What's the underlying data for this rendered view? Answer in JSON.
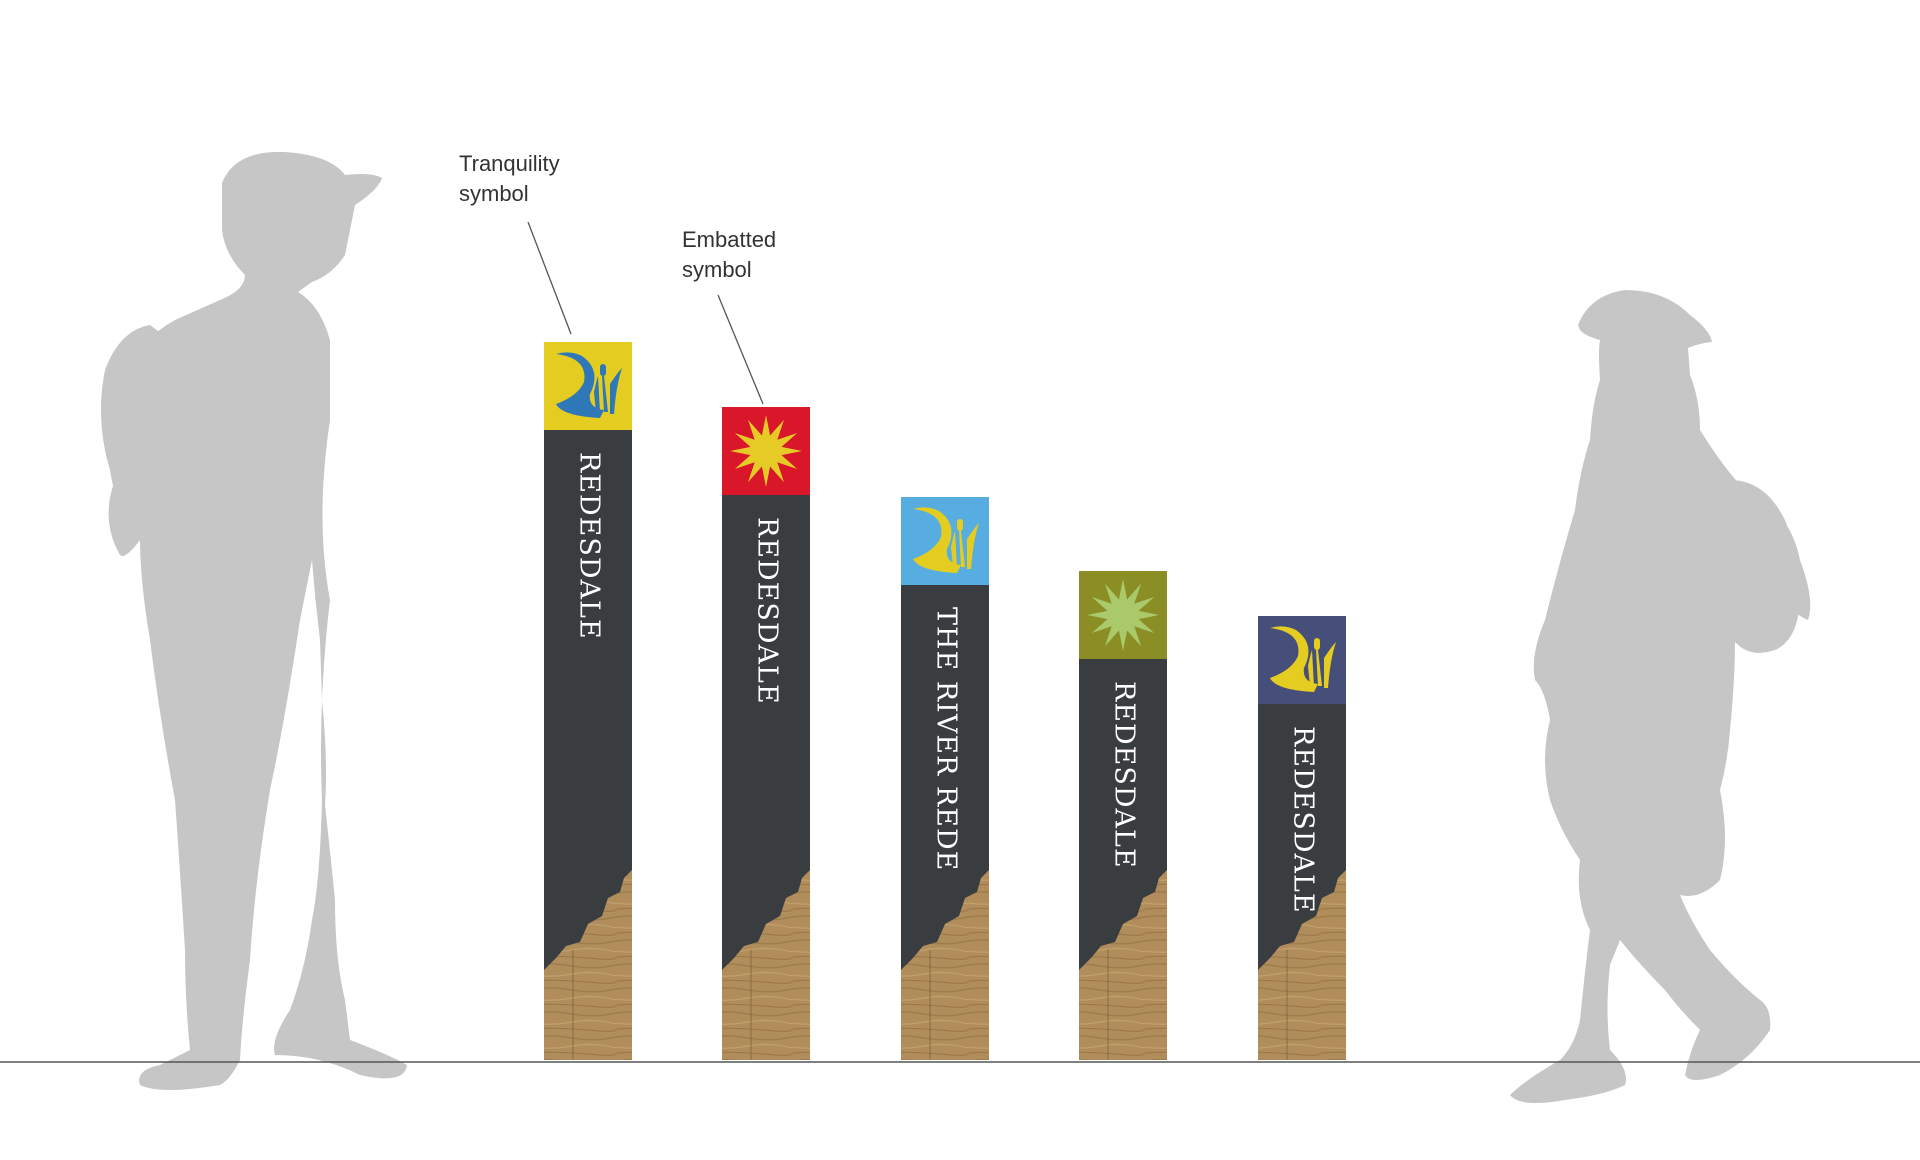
{
  "callouts": [
    {
      "line1": "Tranquility",
      "line2": "symbol"
    },
    {
      "line1": "Embatted",
      "line2": "symbol"
    }
  ],
  "posts": [
    {
      "name": "REDESDALE",
      "symbol": "tranquility-icon",
      "cap_color": "#e4cc21",
      "symbol_color": "#2f78b8"
    },
    {
      "name": "REDESDALE",
      "symbol": "embatted-icon",
      "cap_color": "#d9162a",
      "symbol_color": "#e6cb26"
    },
    {
      "name": "THE RIVER REDE",
      "symbol": "tranquility-icon",
      "cap_color": "#57ade0",
      "symbol_color": "#e4cc21"
    },
    {
      "name": "REDESDALE",
      "symbol": "embatted-icon",
      "cap_color": "#8b8e25",
      "symbol_color": "#a9c96a"
    },
    {
      "name": "REDESDALE",
      "symbol": "tranquility-icon",
      "cap_color": "#454f7a",
      "symbol_color": "#e4cc21"
    }
  ],
  "colors": {
    "post_body": "#3a3d40",
    "wood": "#b08d5a",
    "silhouette": "#c6c6c6",
    "ground_line": "#555555"
  }
}
